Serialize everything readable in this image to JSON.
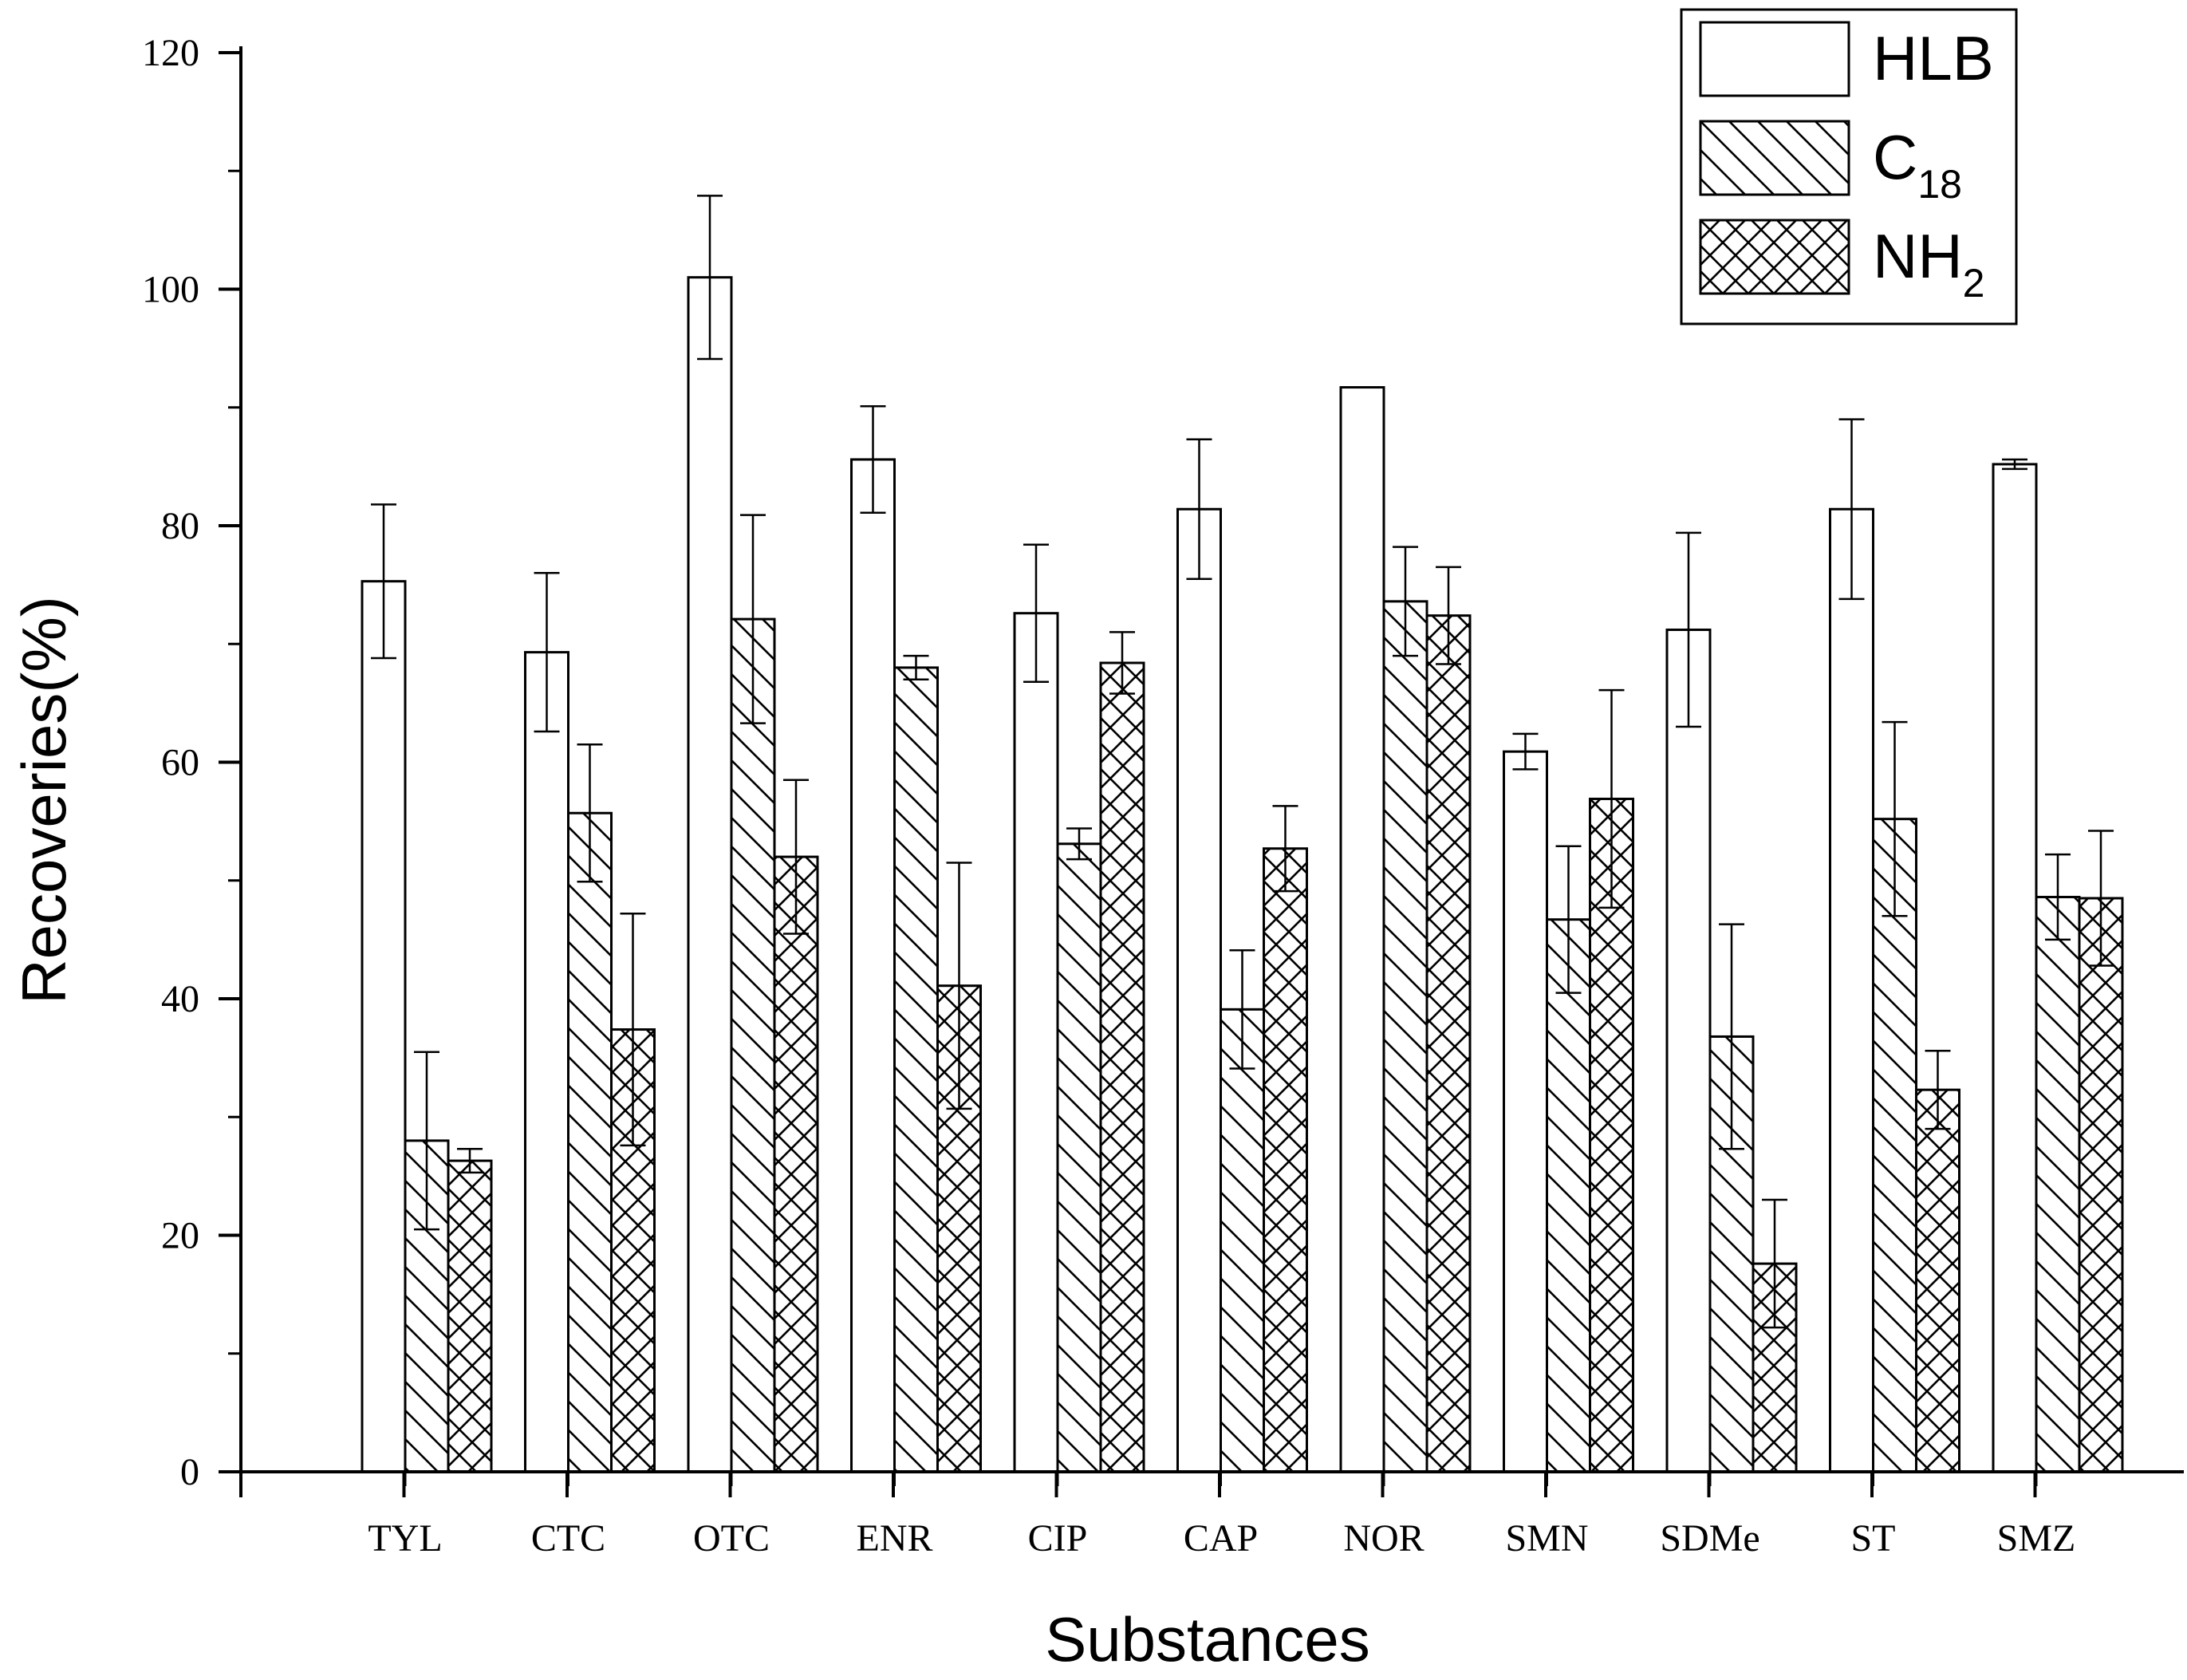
{
  "chart_data": {
    "type": "bar",
    "title": "",
    "xlabel": "Substances",
    "ylabel": "Recoveries(%)",
    "ylim": [
      0,
      120
    ],
    "yticks": [
      0,
      20,
      40,
      60,
      80,
      100,
      120
    ],
    "grid": false,
    "legend_position": "top-right",
    "categories": [
      "TYL",
      "CTC",
      "OTC",
      "ENR",
      "CIP",
      "CAP",
      "NOR",
      "SMN",
      "SDMe",
      "ST",
      "SMZ"
    ],
    "series": [
      {
        "name": "HLB",
        "legend_main": "HLB",
        "legend_sub": "",
        "pattern": "none",
        "values": [
          75.3,
          69.3,
          101.0,
          85.6,
          72.6,
          81.4,
          91.7,
          60.9,
          71.2,
          81.4,
          85.2
        ],
        "errors": [
          6.5,
          6.7,
          6.9,
          4.5,
          5.8,
          5.9,
          0.0,
          1.5,
          8.2,
          7.6,
          0.4
        ]
      },
      {
        "name": "C18",
        "legend_main": "C",
        "legend_sub": "18",
        "pattern": "diagonal",
        "values": [
          28.0,
          55.7,
          72.1,
          68.0,
          53.1,
          39.1,
          73.6,
          46.7,
          36.8,
          55.2,
          48.6
        ],
        "errors": [
          7.5,
          5.8,
          8.8,
          1.0,
          1.3,
          5.0,
          4.6,
          6.2,
          9.5,
          8.2,
          3.6
        ]
      },
      {
        "name": "NH2",
        "legend_main": "NH",
        "legend_sub": "2",
        "pattern": "crosshatch",
        "values": [
          26.3,
          37.4,
          52.0,
          41.1,
          68.4,
          52.7,
          72.4,
          56.9,
          17.6,
          32.3,
          48.5
        ],
        "errors": [
          1.0,
          9.8,
          6.5,
          10.4,
          2.6,
          3.6,
          4.1,
          9.2,
          5.4,
          3.3,
          5.7
        ]
      }
    ]
  }
}
